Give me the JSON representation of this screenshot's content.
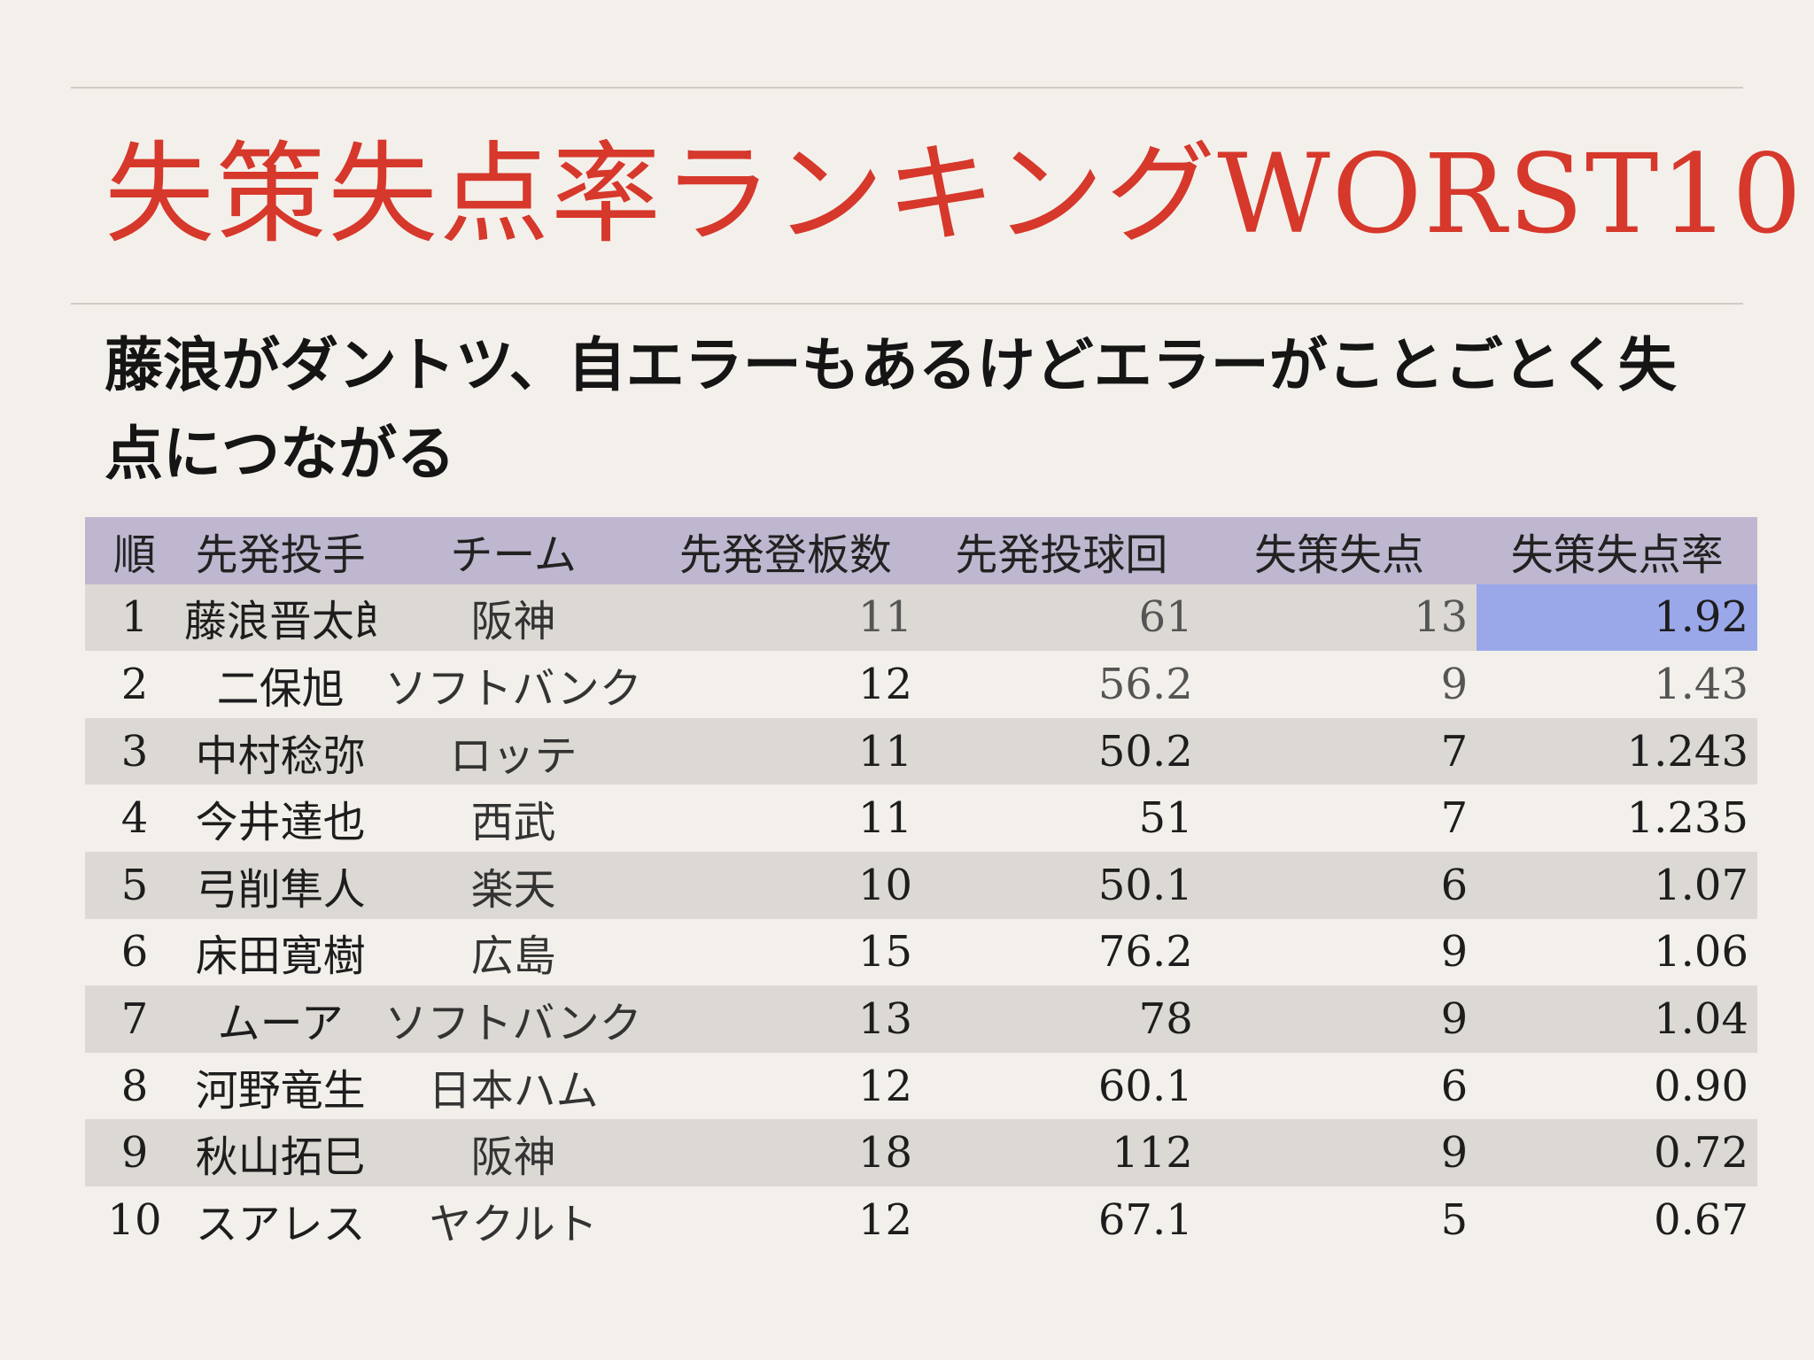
{
  "title": "失策失点率ランキングWORST10",
  "subtitle": "藤浪がダントツ、自エラーもあるけどエラーがことごとく失点につながる",
  "table": {
    "headers": [
      "順",
      "先発投手",
      "チーム",
      "先発登板数",
      "先発投球回",
      "失策失点",
      "失策失点率"
    ],
    "rows": [
      {
        "rank": "1",
        "pitcher": "藤浪晋太郎",
        "team": "阪神",
        "starts": "11",
        "innings": "61",
        "error_runs": "13",
        "rate": "1.92"
      },
      {
        "rank": "2",
        "pitcher": "二保旭",
        "team": "ソフトバンク",
        "starts": "12",
        "innings": "56.2",
        "error_runs": "9",
        "rate": "1.43"
      },
      {
        "rank": "3",
        "pitcher": "中村稔弥",
        "team": "ロッテ",
        "starts": "11",
        "innings": "50.2",
        "error_runs": "7",
        "rate": "1.243"
      },
      {
        "rank": "4",
        "pitcher": "今井達也",
        "team": "西武",
        "starts": "11",
        "innings": "51",
        "error_runs": "7",
        "rate": "1.235"
      },
      {
        "rank": "5",
        "pitcher": "弓削隼人",
        "team": "楽天",
        "starts": "10",
        "innings": "50.1",
        "error_runs": "6",
        "rate": "1.07"
      },
      {
        "rank": "6",
        "pitcher": "床田寛樹",
        "team": "広島",
        "starts": "15",
        "innings": "76.2",
        "error_runs": "9",
        "rate": "1.06"
      },
      {
        "rank": "7",
        "pitcher": "ムーア",
        "team": "ソフトバンク",
        "starts": "13",
        "innings": "78",
        "error_runs": "9",
        "rate": "1.04"
      },
      {
        "rank": "8",
        "pitcher": "河野竜生",
        "team": "日本ハム",
        "starts": "12",
        "innings": "60.1",
        "error_runs": "6",
        "rate": "0.90"
      },
      {
        "rank": "9",
        "pitcher": "秋山拓巳",
        "team": "阪神",
        "starts": "18",
        "innings": "112",
        "error_runs": "9",
        "rate": "0.72"
      },
      {
        "rank": "10",
        "pitcher": "スアレス",
        "team": "ヤクルト",
        "starts": "12",
        "innings": "67.1",
        "error_runs": "5",
        "rate": "0.67"
      }
    ]
  },
  "colors": {
    "title": "#d6382b",
    "header_row": "#bfb7cf",
    "stripe": "#dcd8d3",
    "highlight": "#9aa8ea"
  }
}
